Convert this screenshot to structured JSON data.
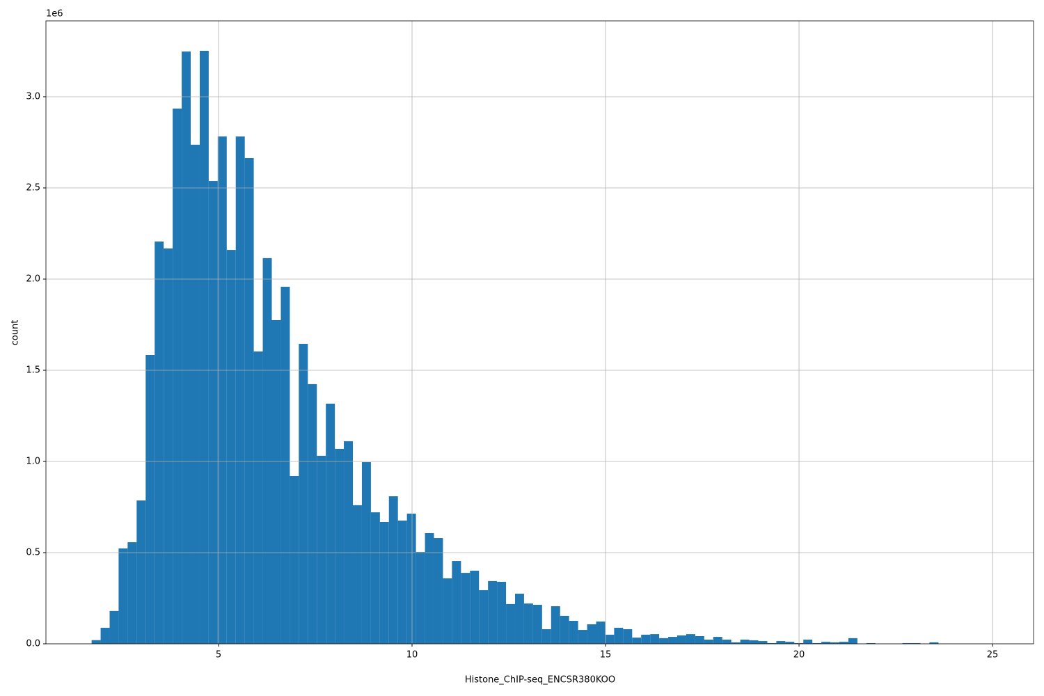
{
  "chart_data": {
    "type": "histogram",
    "x_label": "Histone_ChIP-seq_ENCSR380KOO",
    "y_label": "count",
    "y_offset_label": "1e6",
    "color": "#1f77b4",
    "grid": true,
    "bins": [
      1.72,
      1.953,
      2.186,
      2.418,
      2.651,
      2.884,
      3.117,
      3.35,
      3.582,
      3.815,
      4.048,
      4.281,
      4.514,
      4.746,
      4.979,
      5.212,
      5.445,
      5.678,
      5.91,
      6.143,
      6.376,
      6.609,
      6.842,
      7.074,
      7.307,
      7.54,
      7.773,
      8.006,
      8.238,
      8.471,
      8.704,
      8.937,
      9.17,
      9.402,
      9.635,
      9.868,
      10.101,
      10.334,
      10.566,
      10.799,
      11.032,
      11.265,
      11.498,
      11.73,
      11.963,
      12.196,
      12.429,
      12.662,
      12.894,
      13.127,
      13.36,
      13.593,
      13.826,
      14.058,
      14.291,
      14.524,
      14.757,
      14.99,
      15.222,
      15.455,
      15.688,
      15.921,
      16.154,
      16.386,
      16.619,
      16.852,
      17.085,
      17.318,
      17.55,
      17.783,
      18.016,
      18.249,
      18.482,
      18.714,
      18.947,
      19.18,
      19.413,
      19.646,
      19.878,
      20.111,
      20.344,
      20.577,
      20.81,
      21.042,
      21.275,
      21.508,
      21.741,
      21.974,
      22.206,
      22.439,
      22.672,
      22.905,
      23.138,
      23.37,
      23.603,
      23.836,
      24.069,
      24.302,
      24.534,
      24.767,
      25.0
    ],
    "values": [
      20000,
      88000,
      180000,
      523000,
      557000,
      786000,
      1584000,
      2206000,
      2168000,
      2935000,
      3248000,
      2737000,
      3252000,
      2538000,
      2782000,
      2160000,
      2782000,
      2664000,
      1603000,
      2115000,
      1775000,
      1958000,
      920000,
      1645000,
      1424000,
      1031000,
      1317000,
      1069000,
      1111000,
      760000,
      996000,
      721000,
      668000,
      809000,
      676000,
      714000,
      504000,
      607000,
      580000,
      359000,
      454000,
      389000,
      401000,
      294000,
      344000,
      340000,
      218000,
      275000,
      221000,
      214000,
      80000,
      206000,
      153000,
      126000,
      76000,
      107000,
      122000,
      50000,
      88000,
      80000,
      34000,
      50000,
      53000,
      31000,
      38000,
      46000,
      53000,
      42000,
      23000,
      38000,
      23000,
      8000,
      23000,
      19000,
      15000,
      4000,
      15000,
      11000,
      4000,
      23000,
      4000,
      11000,
      8000,
      11000,
      31000,
      0,
      4000,
      0,
      0,
      0,
      4000,
      4000,
      0,
      8000,
      0,
      0,
      0,
      0,
      0,
      0
    ],
    "xlim": [
      0.54,
      26.06
    ],
    "ylim": [
      0,
      3416000
    ],
    "xticks": [
      5,
      10,
      15,
      20,
      25
    ],
    "yticks": [
      {
        "value": 0,
        "label": "0.0"
      },
      {
        "value": 500000,
        "label": "0.5"
      },
      {
        "value": 1000000,
        "label": "1.0"
      },
      {
        "value": 1500000,
        "label": "1.5"
      },
      {
        "value": 2000000,
        "label": "2.0"
      },
      {
        "value": 2500000,
        "label": "2.5"
      },
      {
        "value": 3000000,
        "label": "3.0"
      }
    ]
  }
}
